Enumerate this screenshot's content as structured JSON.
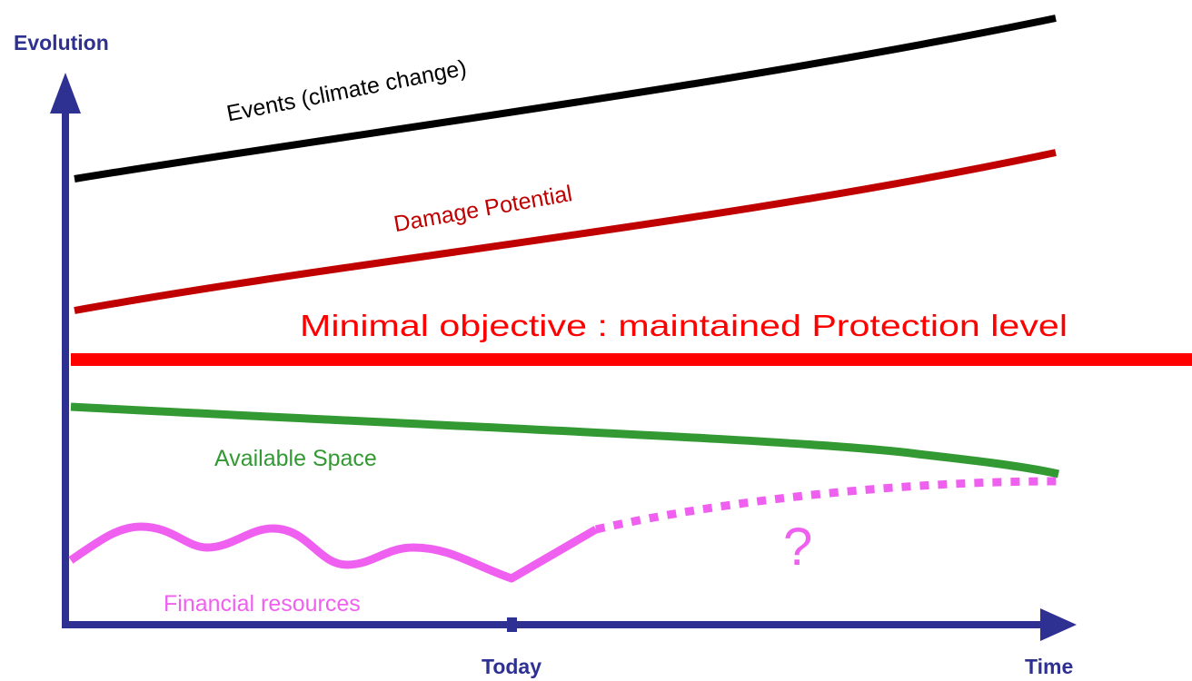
{
  "axes": {
    "y_label": "Evolution",
    "x_label": "Time",
    "marker_label": "Today"
  },
  "curves": [
    {
      "label": "Events (climate change)"
    },
    {
      "label": "Damage Potential"
    },
    {
      "label": "Minimal objective : maintained Protection level"
    },
    {
      "label": "Available Space"
    },
    {
      "label": "Financial resources"
    }
  ],
  "uncertainty_label": "?"
}
